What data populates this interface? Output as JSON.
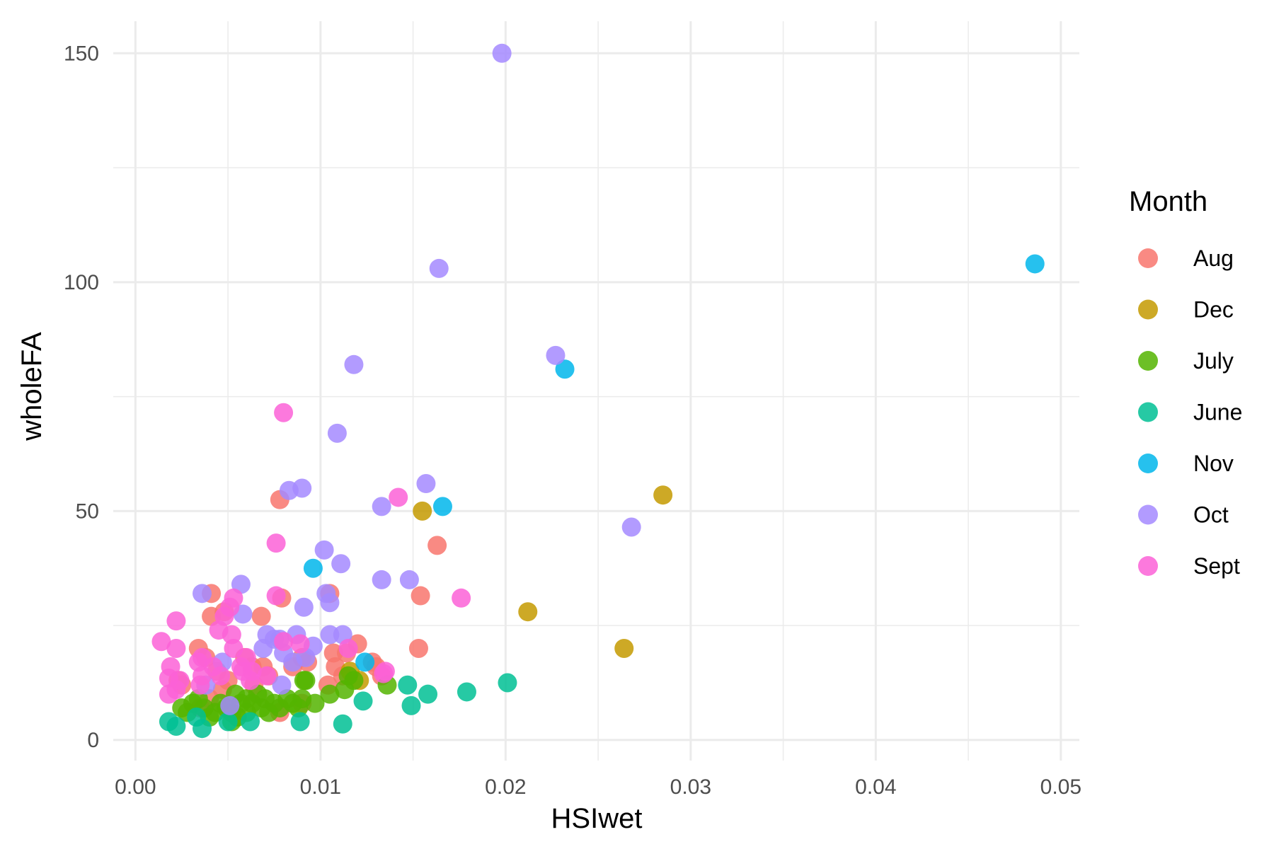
{
  "chart_data": {
    "type": "scatter",
    "title": "",
    "xlabel": "HSIwet",
    "ylabel": "wholeFA",
    "xlim": [
      -0.0012,
      0.051
    ],
    "ylim": [
      -4.5,
      157
    ],
    "x_ticks": [
      0.0,
      0.01,
      0.02,
      0.03,
      0.04,
      0.05
    ],
    "x_tick_labels": [
      "0.00",
      "0.01",
      "0.02",
      "0.03",
      "0.04",
      "0.05"
    ],
    "y_ticks": [
      0,
      50,
      100,
      150
    ],
    "y_tick_labels": [
      "0",
      "50",
      "100",
      "150"
    ],
    "grid": true,
    "legend": {
      "title": "Month",
      "position": "right"
    },
    "series": [
      {
        "name": "Aug",
        "color": "#F8766D",
        "points": [
          [
            0.0078,
            52.5
          ],
          [
            0.0163,
            42.5
          ],
          [
            0.0154,
            31.5
          ],
          [
            0.0153,
            20
          ],
          [
            0.0041,
            32
          ],
          [
            0.0105,
            32
          ],
          [
            0.0068,
            27
          ],
          [
            0.0041,
            27
          ],
          [
            0.0048,
            28
          ],
          [
            0.0079,
            31
          ],
          [
            0.0107,
            19
          ],
          [
            0.012,
            21
          ],
          [
            0.0128,
            17
          ],
          [
            0.0034,
            20
          ],
          [
            0.0038,
            18
          ],
          [
            0.0044,
            15
          ],
          [
            0.005,
            13
          ],
          [
            0.0059,
            18
          ],
          [
            0.0063,
            16
          ],
          [
            0.0072,
            14
          ],
          [
            0.0085,
            16
          ],
          [
            0.009,
            18
          ],
          [
            0.0108,
            16
          ],
          [
            0.0114,
            19
          ],
          [
            0.013,
            16
          ],
          [
            0.0133,
            14
          ],
          [
            0.0047,
            11
          ],
          [
            0.004,
            9
          ],
          [
            0.0035,
            7
          ],
          [
            0.0025,
            12
          ],
          [
            0.0023,
            13
          ],
          [
            0.0069,
            16
          ],
          [
            0.0078,
            6
          ],
          [
            0.009,
            8
          ],
          [
            0.0104,
            12
          ],
          [
            0.0112,
            14
          ],
          [
            0.0093,
            17
          ],
          [
            0.0064,
            12
          ]
        ]
      },
      {
        "name": "Dec",
        "color": "#C49A00",
        "points": [
          [
            0.0285,
            53.5
          ],
          [
            0.0155,
            50
          ],
          [
            0.0212,
            28
          ],
          [
            0.0264,
            20
          ],
          [
            0.0116,
            15
          ],
          [
            0.0121,
            13
          ]
        ]
      },
      {
        "name": "July",
        "color": "#53B400",
        "points": [
          [
            0.0091,
            13
          ],
          [
            0.0105,
            10
          ],
          [
            0.0113,
            11
          ],
          [
            0.0118,
            13
          ],
          [
            0.0136,
            12
          ],
          [
            0.0097,
            8
          ],
          [
            0.009,
            9
          ],
          [
            0.0085,
            8
          ],
          [
            0.0078,
            7
          ],
          [
            0.007,
            9
          ],
          [
            0.0066,
            10
          ],
          [
            0.0063,
            8
          ],
          [
            0.006,
            9
          ],
          [
            0.0057,
            8
          ],
          [
            0.0054,
            10
          ],
          [
            0.0052,
            6
          ],
          [
            0.0049,
            7
          ],
          [
            0.0046,
            8
          ],
          [
            0.0043,
            6
          ],
          [
            0.004,
            5
          ],
          [
            0.0037,
            7
          ],
          [
            0.0034,
            9
          ],
          [
            0.0031,
            8
          ],
          [
            0.0028,
            6
          ],
          [
            0.0025,
            7
          ],
          [
            0.0052,
            4
          ],
          [
            0.0055,
            5
          ],
          [
            0.006,
            6
          ],
          [
            0.0075,
            8
          ],
          [
            0.0082,
            9
          ],
          [
            0.0088,
            7
          ],
          [
            0.0068,
            7
          ],
          [
            0.0072,
            6
          ],
          [
            0.0115,
            14
          ],
          [
            0.0092,
            13
          ]
        ]
      },
      {
        "name": "June",
        "color": "#00C094",
        "points": [
          [
            0.0201,
            12.5
          ],
          [
            0.0179,
            10.5
          ],
          [
            0.0158,
            10
          ],
          [
            0.0147,
            12
          ],
          [
            0.0149,
            7.5
          ],
          [
            0.0123,
            8.5
          ],
          [
            0.0112,
            3.5
          ],
          [
            0.0089,
            4
          ],
          [
            0.0062,
            4
          ],
          [
            0.0036,
            2.5
          ],
          [
            0.0022,
            3
          ],
          [
            0.0018,
            4
          ],
          [
            0.0033,
            5
          ],
          [
            0.005,
            4
          ]
        ]
      },
      {
        "name": "Nov",
        "color": "#00B6EB",
        "points": [
          [
            0.0486,
            104
          ],
          [
            0.0232,
            81
          ],
          [
            0.0166,
            51
          ],
          [
            0.0096,
            37.5
          ],
          [
            0.0124,
            17
          ]
        ]
      },
      {
        "name": "Oct",
        "color": "#A58AFF",
        "points": [
          [
            0.0198,
            150
          ],
          [
            0.0164,
            103
          ],
          [
            0.0227,
            84
          ],
          [
            0.0118,
            82
          ],
          [
            0.0109,
            67
          ],
          [
            0.0157,
            56
          ],
          [
            0.009,
            55
          ],
          [
            0.0083,
            54.5
          ],
          [
            0.0133,
            51
          ],
          [
            0.0268,
            46.5
          ],
          [
            0.0102,
            41.5
          ],
          [
            0.0111,
            38.5
          ],
          [
            0.0133,
            35
          ],
          [
            0.0148,
            35
          ],
          [
            0.0057,
            34
          ],
          [
            0.0036,
            32
          ],
          [
            0.0103,
            32
          ],
          [
            0.0105,
            30
          ],
          [
            0.0091,
            29
          ],
          [
            0.0058,
            27.5
          ],
          [
            0.0071,
            23
          ],
          [
            0.0075,
            22
          ],
          [
            0.0087,
            23
          ],
          [
            0.0105,
            23
          ],
          [
            0.0112,
            23
          ],
          [
            0.0096,
            20.5
          ],
          [
            0.008,
            19
          ],
          [
            0.0085,
            17
          ],
          [
            0.0092,
            18
          ],
          [
            0.0079,
            12
          ],
          [
            0.0038,
            12
          ],
          [
            0.0051,
            7.5
          ],
          [
            0.0047,
            17
          ],
          [
            0.0078,
            22
          ],
          [
            0.0069,
            20
          ]
        ]
      },
      {
        "name": "Sept",
        "color": "#FB61D7",
        "points": [
          [
            0.008,
            71.5
          ],
          [
            0.0142,
            53
          ],
          [
            0.0076,
            43
          ],
          [
            0.0176,
            31
          ],
          [
            0.0053,
            31
          ],
          [
            0.0076,
            31.5
          ],
          [
            0.0051,
            29
          ],
          [
            0.0048,
            27
          ],
          [
            0.0022,
            26
          ],
          [
            0.0045,
            24
          ],
          [
            0.0052,
            23
          ],
          [
            0.0014,
            21.5
          ],
          [
            0.0022,
            20
          ],
          [
            0.0053,
            20
          ],
          [
            0.006,
            18
          ],
          [
            0.008,
            21.5
          ],
          [
            0.0089,
            21
          ],
          [
            0.0115,
            20
          ],
          [
            0.0036,
            18
          ],
          [
            0.0034,
            17
          ],
          [
            0.0042,
            16
          ],
          [
            0.0057,
            16
          ],
          [
            0.0063,
            15
          ],
          [
            0.0071,
            14
          ],
          [
            0.0019,
            16
          ],
          [
            0.0024,
            13
          ],
          [
            0.0018,
            13.5
          ],
          [
            0.0036,
            14
          ],
          [
            0.0046,
            14
          ],
          [
            0.0058,
            15
          ],
          [
            0.0135,
            15
          ],
          [
            0.0134,
            14.5
          ],
          [
            0.0018,
            10
          ],
          [
            0.0022,
            11
          ],
          [
            0.0035,
            12
          ],
          [
            0.0062,
            13
          ]
        ]
      }
    ]
  }
}
